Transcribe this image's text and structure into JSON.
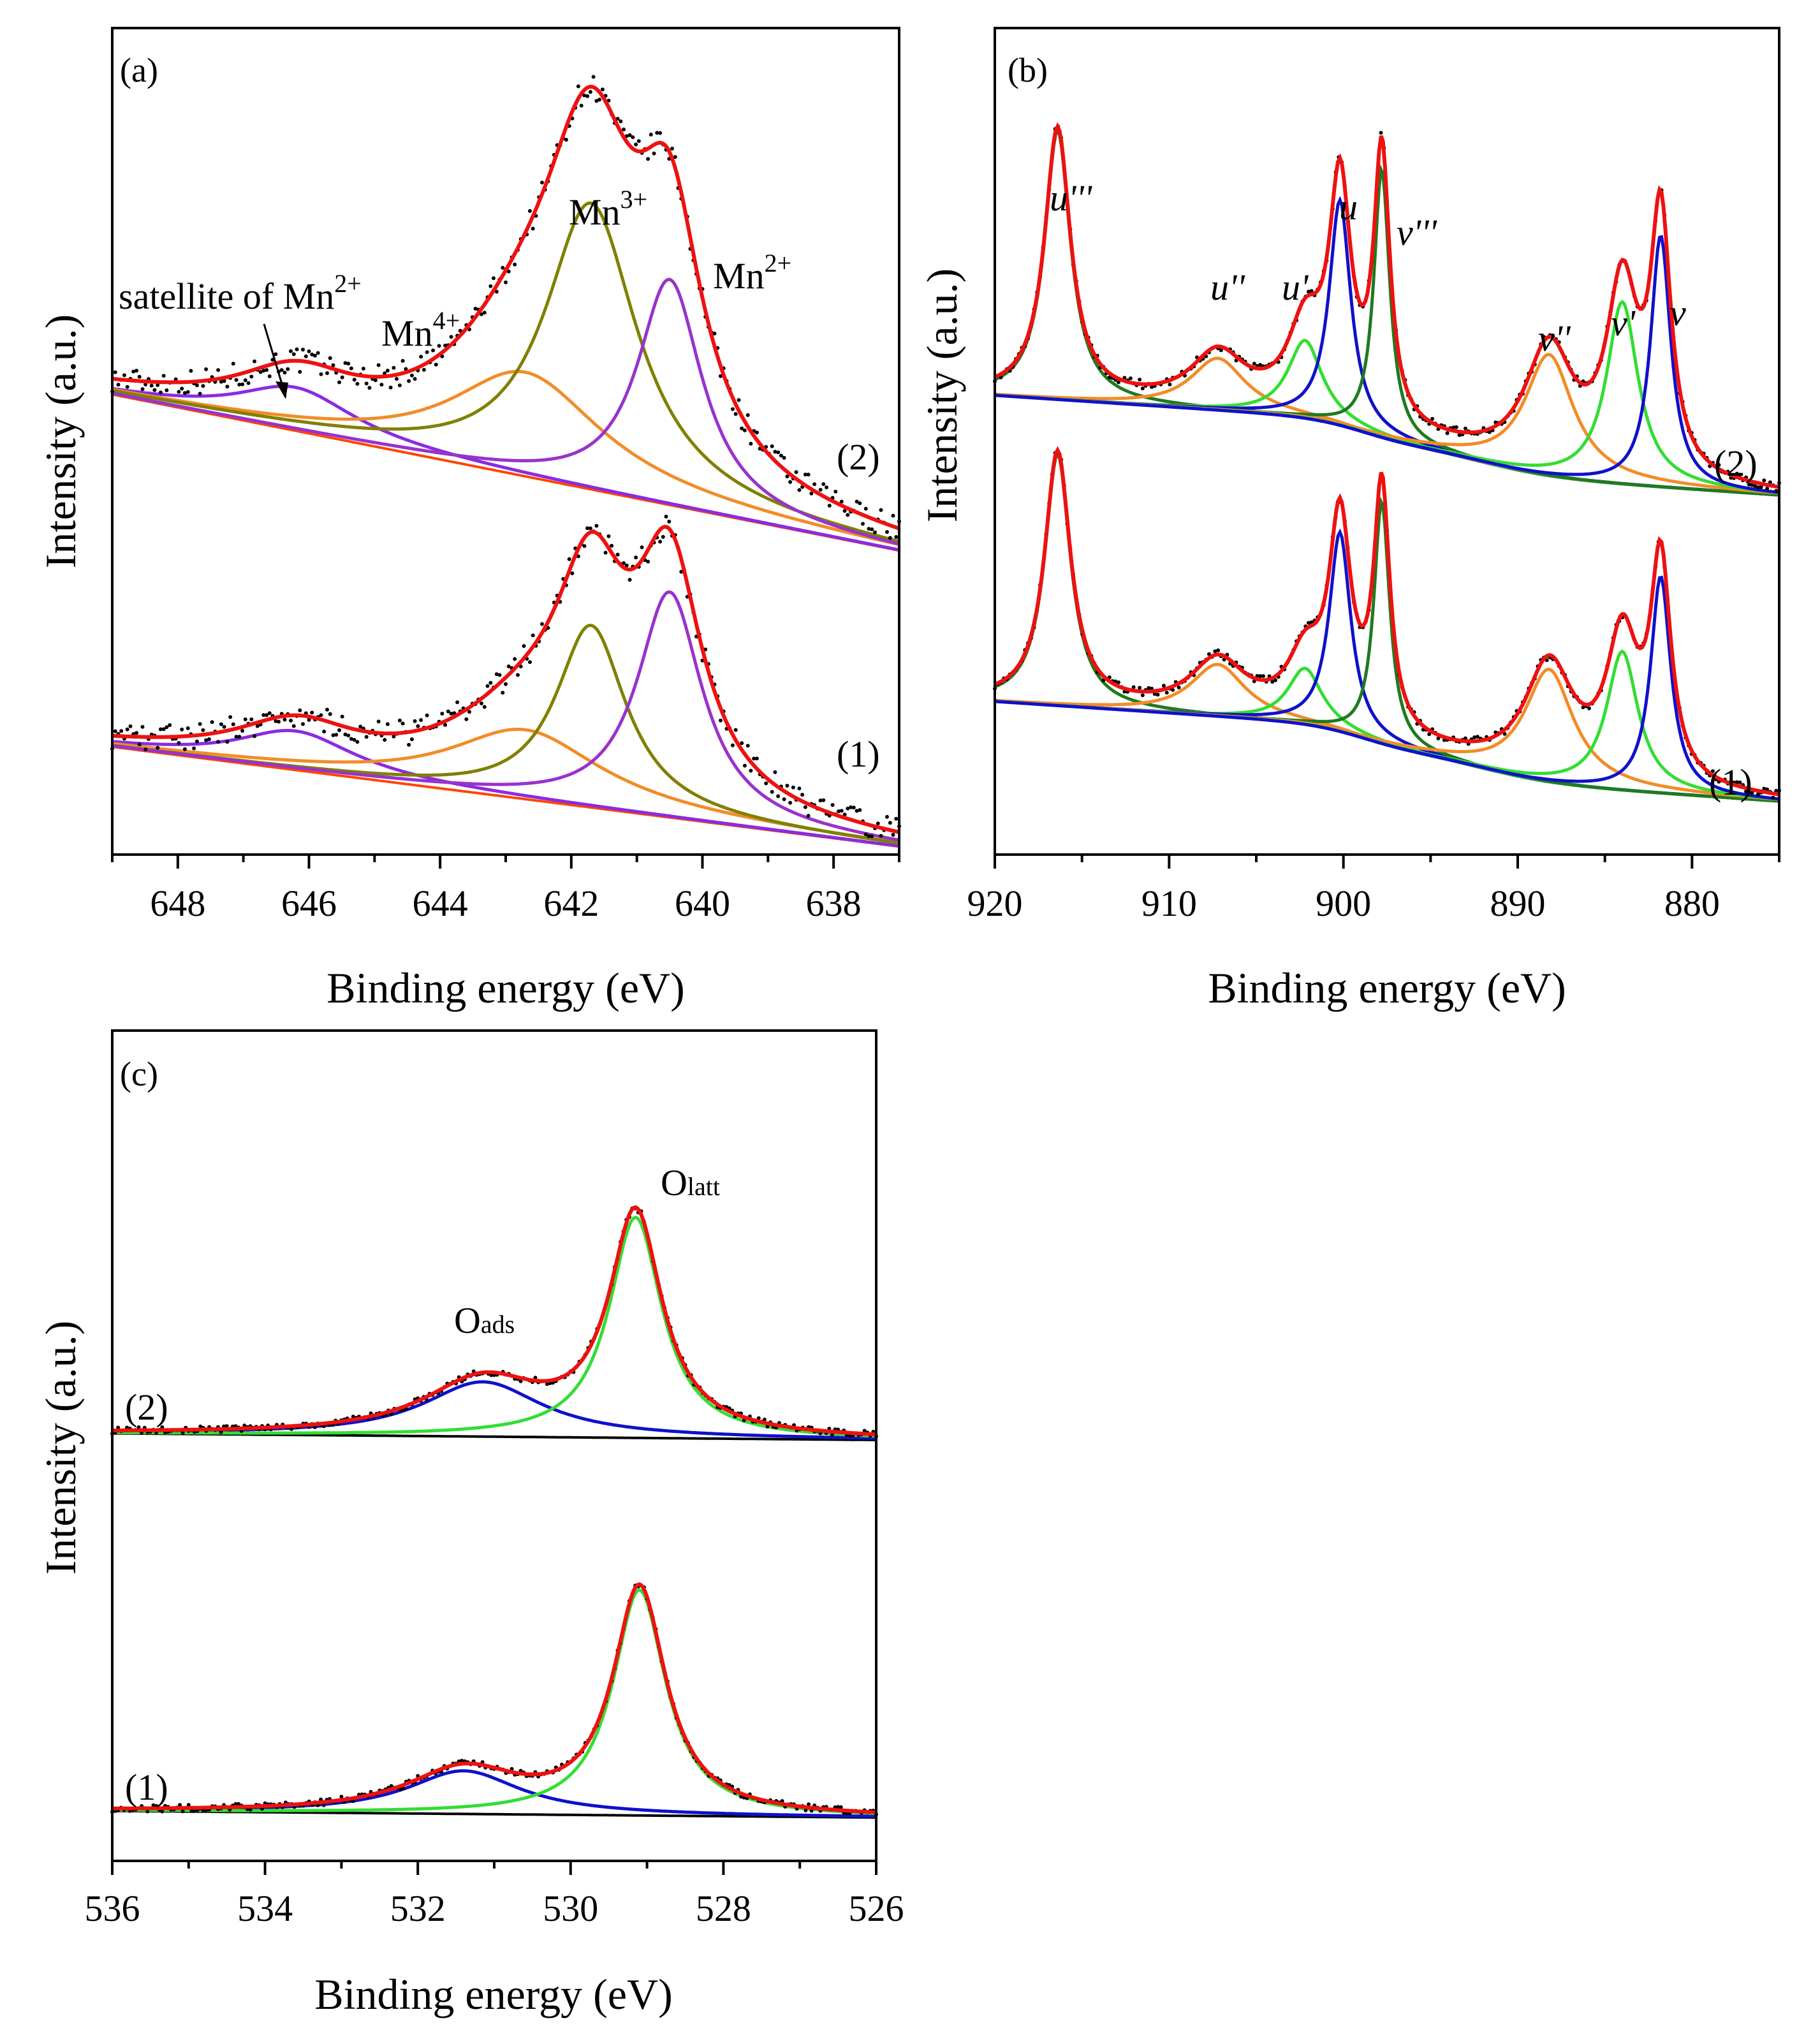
{
  "chart_data": [
    {
      "id": "a",
      "type": "line",
      "panel_label": "(a)",
      "xlabel": "Binding energy (eV)",
      "ylabel": "Intensity (a.u.)",
      "xlim": [
        649,
        637
      ],
      "x_ticks": [
        648,
        646,
        644,
        642,
        640,
        638
      ],
      "x_reversed": true,
      "spectra": [
        {
          "name": "(2)",
          "baseline": [
            [
              649,
              0.12
            ],
            [
              637,
              -0.24
            ]
          ],
          "peaks": [
            {
              "label": "satellite of Mn2+",
              "center": 646.2,
              "height": 0.1,
              "width": 1.1,
              "color": "#8a2be2"
            },
            {
              "label": "Mn4+",
              "center": 642.7,
              "height": 0.24,
              "width": 1.4,
              "color": "#f28c28"
            },
            {
              "label": "Mn3+",
              "center": 641.7,
              "height": 0.66,
              "width": 0.85,
              "color": "#808000"
            },
            {
              "label": "Mn2+",
              "center": 640.5,
              "height": 0.52,
              "width": 0.6,
              "color": "#9932cc"
            }
          ]
        },
        {
          "name": "(1)",
          "baseline": [
            [
              649,
              0.05
            ],
            [
              637,
              -0.18
            ]
          ],
          "peaks": [
            {
              "label": "satellite of Mn2+",
              "center": 646.2,
              "height": 0.09,
              "width": 1.1,
              "color": "#8a2be2"
            },
            {
              "label": "Mn4+",
              "center": 642.7,
              "height": 0.16,
              "width": 1.4,
              "color": "#f28c28"
            },
            {
              "label": "Mn3+",
              "center": 641.7,
              "height": 0.42,
              "width": 0.65,
              "color": "#808000"
            },
            {
              "label": "Mn2+",
              "center": 640.5,
              "height": 0.52,
              "width": 0.6,
              "color": "#9932cc"
            }
          ]
        }
      ],
      "annotations": [
        {
          "text": "Mn",
          "sup": "3+",
          "x": 641.5
        },
        {
          "text": "Mn",
          "sup": "2+",
          "x": 639.5
        },
        {
          "text": "Mn",
          "sup": "4+",
          "x": 644.2
        },
        {
          "text": "satellite of Mn",
          "sup": "2+",
          "x": 646.5
        }
      ]
    },
    {
      "id": "b",
      "type": "line",
      "panel_label": "(b)",
      "xlabel": "Binding energy (eV)",
      "ylabel": "Intensity (a.u.)",
      "xlim": [
        920,
        875
      ],
      "x_ticks": [
        920,
        910,
        900,
        890,
        880
      ],
      "x_reversed": true,
      "spectra": [
        {
          "name": "(2)",
          "peaks": [
            {
              "label": "u'''",
              "center": 916.4,
              "height": 0.62,
              "width": 0.9,
              "color": "#1f7a1f"
            },
            {
              "label": "u''",
              "center": 907.2,
              "height": 0.12,
              "width": 1.9,
              "color": "#f28c28"
            },
            {
              "label": "u'",
              "center": 902.2,
              "height": 0.18,
              "width": 1.2,
              "color": "#33dd33"
            },
            {
              "label": "u",
              "center": 900.2,
              "height": 0.52,
              "width": 0.75,
              "color": "#1010cc"
            },
            {
              "label": "v'''",
              "center": 897.8,
              "height": 0.62,
              "width": 0.55,
              "color": "#1f7a1f"
            },
            {
              "label": "v''",
              "center": 888.2,
              "height": 0.28,
              "width": 1.7,
              "color": "#f28c28"
            },
            {
              "label": "v'",
              "center": 884.0,
              "height": 0.42,
              "width": 1.1,
              "color": "#33dd33"
            },
            {
              "label": "v",
              "center": 881.8,
              "height": 0.58,
              "width": 0.7,
              "color": "#1010cc"
            }
          ]
        },
        {
          "name": "(1)",
          "peaks": [
            {
              "label": "u'''",
              "center": 916.4,
              "height": 0.58,
              "width": 0.9,
              "color": "#1f7a1f"
            },
            {
              "label": "u''",
              "center": 907.2,
              "height": 0.12,
              "width": 1.9,
              "color": "#f28c28"
            },
            {
              "label": "u'",
              "center": 902.2,
              "height": 0.13,
              "width": 1.2,
              "color": "#33dd33"
            },
            {
              "label": "u",
              "center": 900.2,
              "height": 0.46,
              "width": 0.75,
              "color": "#1010cc"
            },
            {
              "label": "v'''",
              "center": 897.8,
              "height": 0.56,
              "width": 0.55,
              "color": "#1f7a1f"
            },
            {
              "label": "v''",
              "center": 888.2,
              "height": 0.26,
              "width": 1.7,
              "color": "#f28c28"
            },
            {
              "label": "v'",
              "center": 884.0,
              "height": 0.32,
              "width": 1.1,
              "color": "#33dd33"
            },
            {
              "label": "v",
              "center": 881.8,
              "height": 0.5,
              "width": 0.7,
              "color": "#1010cc"
            }
          ]
        }
      ],
      "annotations": [
        {
          "text": "u'''",
          "x": 916.0
        },
        {
          "text": "u''",
          "x": 908.8
        },
        {
          "text": "u'",
          "x": 902.9
        },
        {
          "text": "u",
          "x": 900.3
        },
        {
          "text": "v'''",
          "x": 896.8
        },
        {
          "text": "v''",
          "x": 890.3
        },
        {
          "text": "v'",
          "x": 885.2
        },
        {
          "text": "v",
          "x": 881.5
        }
      ]
    },
    {
      "id": "c",
      "type": "line",
      "panel_label": "(c)",
      "xlabel": "Binding energy (eV)",
      "ylabel": "Intensity (a.u.)",
      "xlim": [
        536,
        526
      ],
      "x_ticks": [
        536,
        534,
        532,
        530,
        528,
        526
      ],
      "x_reversed": true,
      "spectra": [
        {
          "name": "(2)",
          "peaks": [
            {
              "label": "Oads",
              "center": 531.15,
              "height": 0.165,
              "width": 0.95,
              "color": "#1010cc"
            },
            {
              "label": "Olatt",
              "center": 529.15,
              "height": 0.665,
              "width": 0.42,
              "color": "#33dd33"
            }
          ]
        },
        {
          "name": "(1)",
          "peaks": [
            {
              "label": "Oads",
              "center": 531.4,
              "height": 0.13,
              "width": 0.9,
              "color": "#1010cc"
            },
            {
              "label": "Olatt",
              "center": 529.1,
              "height": 0.68,
              "width": 0.42,
              "color": "#33dd33"
            }
          ]
        }
      ],
      "annotations": [
        {
          "text": "O",
          "sub": "latt",
          "x": 528.7
        },
        {
          "text": "O",
          "sub": "ads",
          "x": 531.4
        }
      ]
    }
  ]
}
